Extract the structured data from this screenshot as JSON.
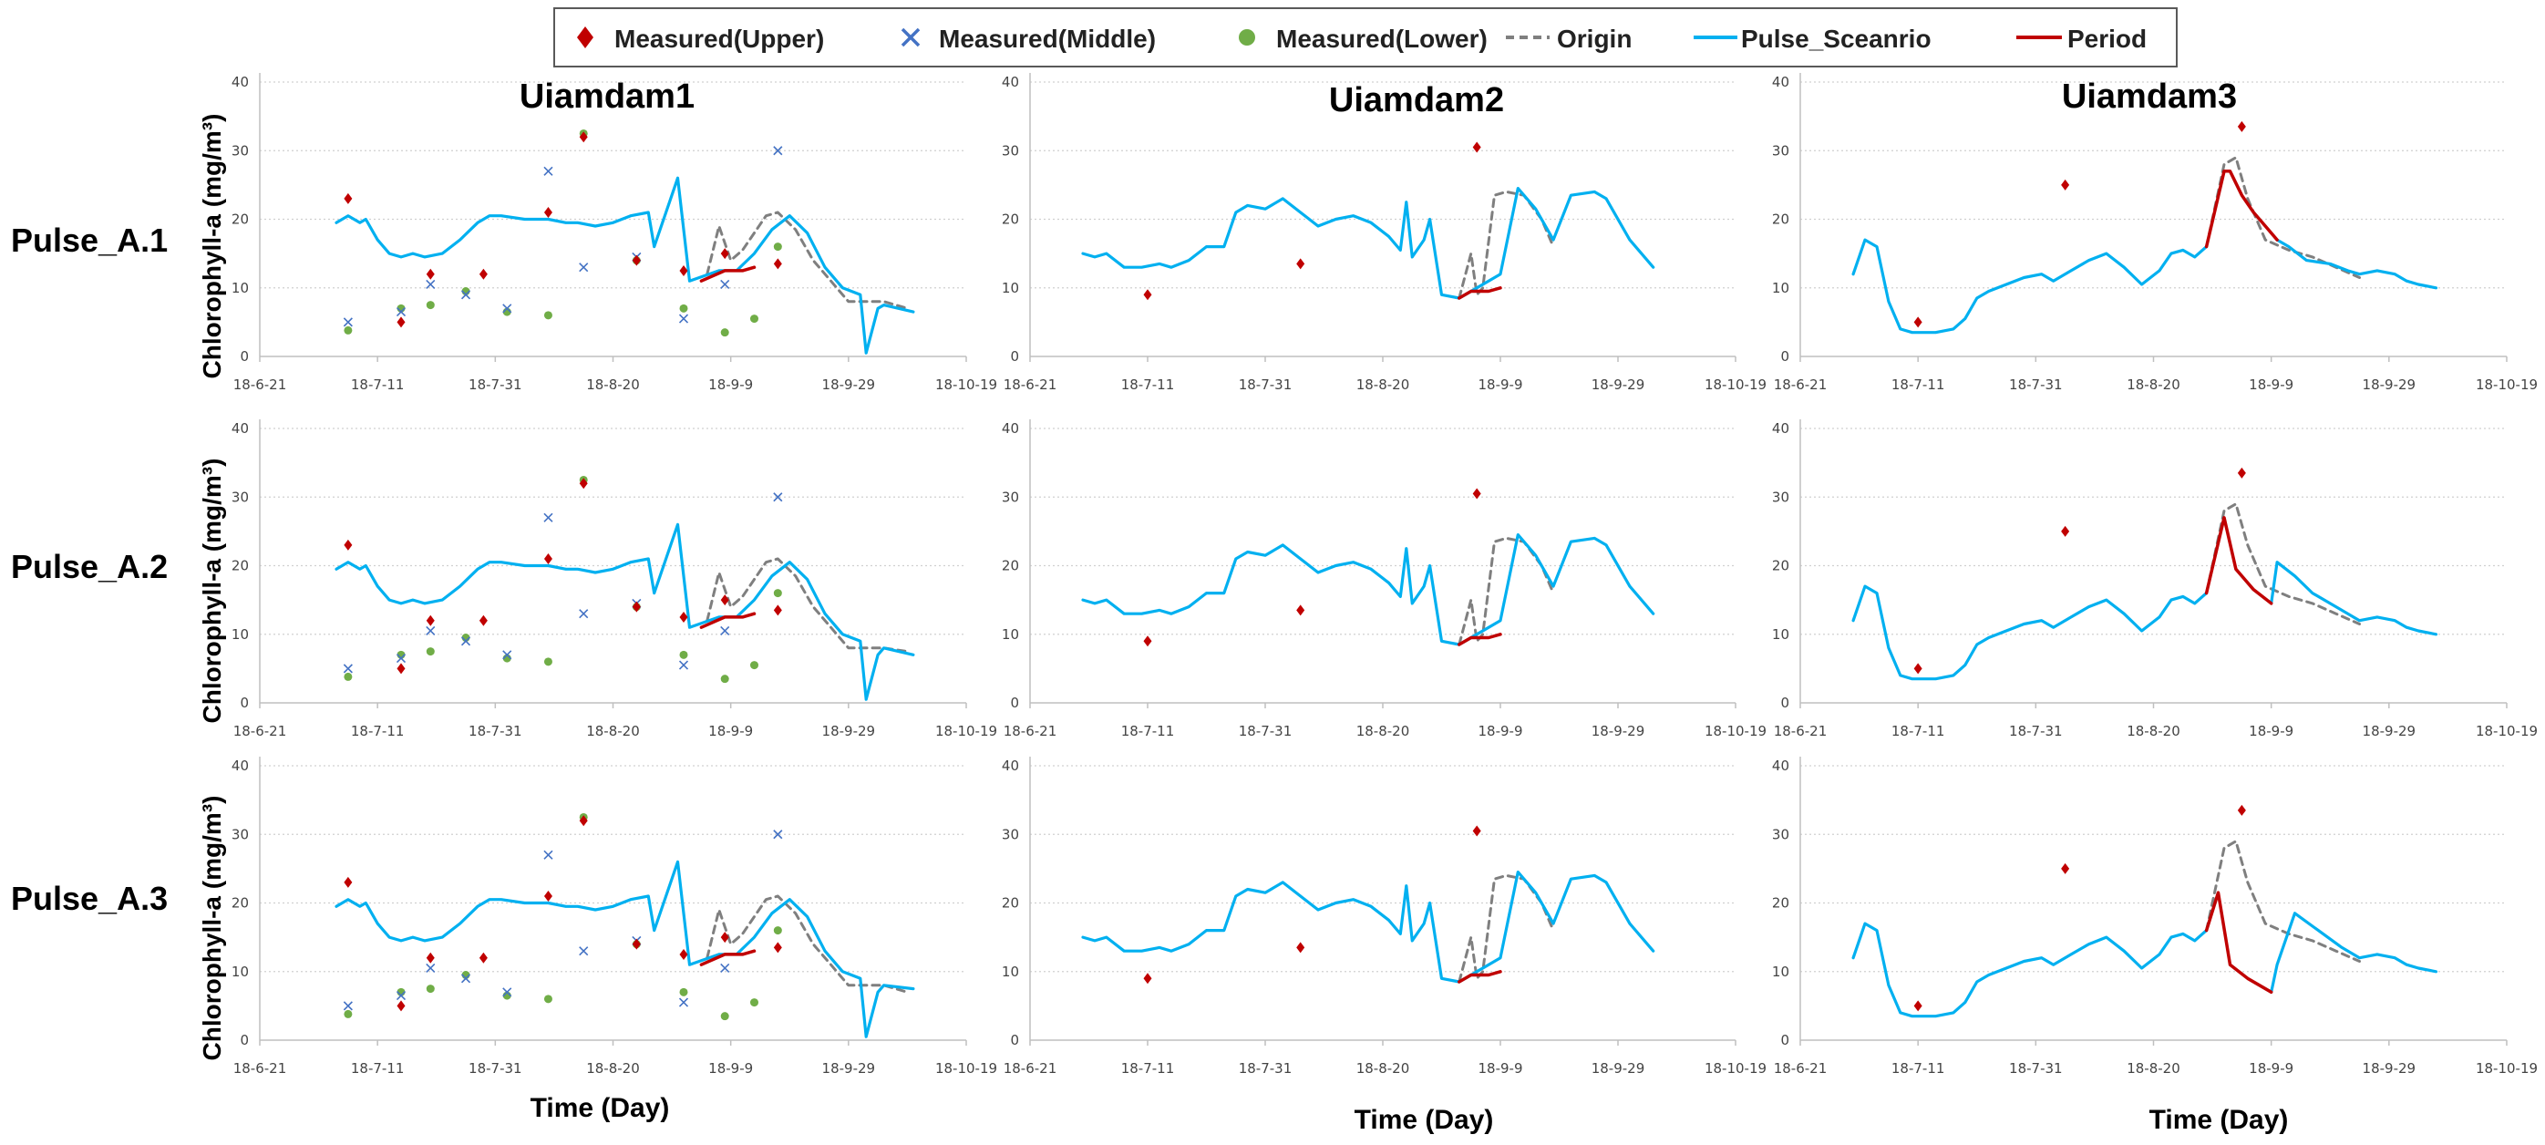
{
  "figure": {
    "column_titles": [
      "Uiamdam1",
      "Uiamdam2",
      "Uiamdam3"
    ],
    "row_labels": [
      "Pulse_A.1",
      "Pulse_A.2",
      "Pulse_A.3"
    ],
    "y_axis_label": "Chlorophyll-a (mg/m³)",
    "x_axis_label": "Time (Day)"
  },
  "legend": [
    {
      "label": "Measured(Upper)",
      "marker": "diamond",
      "color": "#C00000"
    },
    {
      "label": "Measured(Middle)",
      "marker": "x",
      "color": "#4472C4"
    },
    {
      "label": "Measured(Lower)",
      "marker": "circle",
      "color": "#70AD47"
    },
    {
      "label": "Origin",
      "marker": "dashed-line",
      "color": "#7F7F7F"
    },
    {
      "label": "Pulse_Sceanrio",
      "marker": "line",
      "color": "#00B0F0"
    },
    {
      "label": "Period",
      "marker": "line",
      "color": "#C00000"
    }
  ],
  "colors": {
    "upper": "#C00000",
    "middle": "#4472C4",
    "lower": "#70AD47",
    "origin": "#7F7F7F",
    "scenario": "#00B0F0",
    "period": "#C00000"
  },
  "chart_data": {
    "type": "line",
    "x_axis": {
      "kind": "date",
      "tick_labels": [
        "18-6-21",
        "18-7-11",
        "18-7-31",
        "18-8-20",
        "18-9-9",
        "18-9-29",
        "18-10-19"
      ],
      "range": [
        "2018-06-21",
        "2018-10-19"
      ]
    },
    "y_axis": {
      "range": [
        0,
        40
      ],
      "tick_labels": [
        "0",
        "10",
        "20",
        "30",
        "40"
      ],
      "grid": "dotted horizontal"
    },
    "legend_position": "top",
    "sites": {
      "Uiamdam1": {
        "measured_upper": [
          [
            "2018-07-06",
            23
          ],
          [
            "2018-07-15",
            5
          ],
          [
            "2018-07-20",
            12
          ],
          [
            "2018-07-29",
            12
          ],
          [
            "2018-08-09",
            21
          ],
          [
            "2018-08-15",
            32
          ],
          [
            "2018-08-24",
            14
          ],
          [
            "2018-09-01",
            12.5
          ],
          [
            "2018-09-08",
            15
          ],
          [
            "2018-09-17",
            13.5
          ]
        ],
        "measured_middle": [
          [
            "2018-07-06",
            5
          ],
          [
            "2018-07-15",
            6.5
          ],
          [
            "2018-07-20",
            10.5
          ],
          [
            "2018-07-26",
            9
          ],
          [
            "2018-08-02",
            7
          ],
          [
            "2018-08-09",
            27
          ],
          [
            "2018-08-15",
            13
          ],
          [
            "2018-08-24",
            14.5
          ],
          [
            "2018-09-01",
            5.5
          ],
          [
            "2018-09-08",
            10.5
          ],
          [
            "2018-09-17",
            30
          ]
        ],
        "measured_lower": [
          [
            "2018-07-06",
            3.8
          ],
          [
            "2018-07-15",
            7
          ],
          [
            "2018-07-20",
            7.5
          ],
          [
            "2018-07-26",
            9.5
          ],
          [
            "2018-08-02",
            6.5
          ],
          [
            "2018-08-09",
            6
          ],
          [
            "2018-08-15",
            32.5
          ],
          [
            "2018-08-24",
            14
          ],
          [
            "2018-09-01",
            7
          ],
          [
            "2018-09-08",
            3.5
          ],
          [
            "2018-09-13",
            5.5
          ],
          [
            "2018-09-17",
            16
          ]
        ],
        "scenario": [
          [
            "2018-07-04",
            19.5
          ],
          [
            "2018-07-06",
            20.5
          ],
          [
            "2018-07-08",
            19.5
          ],
          [
            "2018-07-09",
            20
          ],
          [
            "2018-07-11",
            17
          ],
          [
            "2018-07-13",
            15
          ],
          [
            "2018-07-15",
            14.5
          ],
          [
            "2018-07-17",
            15
          ],
          [
            "2018-07-19",
            14.5
          ],
          [
            "2018-07-22",
            15
          ],
          [
            "2018-07-25",
            17
          ],
          [
            "2018-07-28",
            19.5
          ],
          [
            "2018-07-30",
            20.5
          ],
          [
            "2018-08-01",
            20.5
          ],
          [
            "2018-08-05",
            20
          ],
          [
            "2018-08-09",
            20
          ],
          [
            "2018-08-12",
            19.5
          ],
          [
            "2018-08-14",
            19.5
          ],
          [
            "2018-08-17",
            19
          ],
          [
            "2018-08-20",
            19.5
          ],
          [
            "2018-08-23",
            20.5
          ],
          [
            "2018-08-26",
            21
          ],
          [
            "2018-08-27",
            16
          ],
          [
            "2018-08-29",
            21
          ],
          [
            "2018-08-31",
            26
          ],
          [
            "2018-09-02",
            11
          ],
          [
            "2018-09-07",
            12.5
          ],
          [
            "2018-09-10",
            12.5
          ],
          [
            "2018-09-13",
            15
          ],
          [
            "2018-09-16",
            18.5
          ],
          [
            "2018-09-19",
            20.5
          ],
          [
            "2018-09-22",
            18
          ],
          [
            "2018-09-25",
            13
          ],
          [
            "2018-09-28",
            10
          ],
          [
            "2018-10-01",
            9
          ],
          [
            "2018-10-02",
            0.5
          ],
          [
            "2018-10-04",
            7
          ],
          [
            "2018-10-07",
            7.5
          ],
          [
            "2018-10-10",
            6.5
          ]
        ],
        "period": [],
        "origin": [
          [
            "2018-09-05",
            12
          ],
          [
            "2018-09-07",
            19
          ],
          [
            "2018-09-09",
            14
          ],
          [
            "2018-09-11",
            15.5
          ],
          [
            "2018-09-15",
            20.5
          ],
          [
            "2018-09-17",
            21
          ],
          [
            "2018-09-20",
            18.5
          ],
          [
            "2018-09-23",
            14
          ],
          [
            "2018-09-26",
            11
          ],
          [
            "2018-09-29",
            8
          ],
          [
            "2018-10-02",
            8
          ],
          [
            "2018-10-05",
            8
          ],
          [
            "2018-10-09",
            7
          ]
        ],
        "panel_variants": {
          "Pulse_A.1": {
            "scenario_tail": [
              [
                "2018-10-05",
                7.5
              ],
              [
                "2018-10-10",
                6.5
              ]
            ],
            "period": [
              [
                "2018-09-04",
                11
              ],
              [
                "2018-09-08",
                12.5
              ],
              [
                "2018-09-11",
                12.5
              ],
              [
                "2018-09-13",
                13
              ]
            ],
            "origin_tail": [
              [
                "2018-10-09",
                7
              ]
            ]
          },
          "Pulse_A.2": {
            "scenario_tail": [
              [
                "2018-10-05",
                8
              ],
              [
                "2018-10-10",
                7
              ]
            ],
            "period": [
              [
                "2018-09-04",
                11
              ],
              [
                "2018-09-08",
                12.5
              ],
              [
                "2018-09-11",
                12.5
              ],
              [
                "2018-09-13",
                13
              ]
            ],
            "origin_tail": [
              [
                "2018-10-09",
                7.5
              ]
            ]
          },
          "Pulse_A.3": {
            "scenario_tail": [
              [
                "2018-10-05",
                8
              ],
              [
                "2018-10-10",
                7.5
              ]
            ],
            "period": [
              [
                "2018-09-04",
                11
              ],
              [
                "2018-09-08",
                12.5
              ],
              [
                "2018-09-11",
                12.5
              ],
              [
                "2018-09-13",
                13
              ]
            ],
            "origin_tail": [
              [
                "2018-10-09",
                7
              ]
            ]
          }
        }
      },
      "Uiamdam2": {
        "measured_upper": [
          [
            "2018-07-11",
            9
          ],
          [
            "2018-08-06",
            13.5
          ],
          [
            "2018-09-05",
            30.5
          ]
        ],
        "scenario": [
          [
            "2018-06-30",
            15
          ],
          [
            "2018-07-02",
            14.5
          ],
          [
            "2018-07-04",
            15
          ],
          [
            "2018-07-07",
            13
          ],
          [
            "2018-07-10",
            13
          ],
          [
            "2018-07-13",
            13.5
          ],
          [
            "2018-07-15",
            13
          ],
          [
            "2018-07-18",
            14
          ],
          [
            "2018-07-21",
            16
          ],
          [
            "2018-07-24",
            16
          ],
          [
            "2018-07-26",
            21
          ],
          [
            "2018-07-28",
            22
          ],
          [
            "2018-07-31",
            21.5
          ],
          [
            "2018-08-03",
            23
          ],
          [
            "2018-08-06",
            21
          ],
          [
            "2018-08-09",
            19
          ],
          [
            "2018-08-12",
            20
          ],
          [
            "2018-08-15",
            20.5
          ],
          [
            "2018-08-18",
            19.5
          ],
          [
            "2018-08-21",
            17.5
          ],
          [
            "2018-08-23",
            15.5
          ],
          [
            "2018-08-24",
            22.5
          ],
          [
            "2018-08-25",
            14.5
          ],
          [
            "2018-08-27",
            17
          ],
          [
            "2018-08-28",
            20
          ],
          [
            "2018-08-30",
            9
          ],
          [
            "2018-09-02",
            8.5
          ],
          [
            "2018-09-03",
            9
          ],
          [
            "2018-09-09",
            12
          ],
          [
            "2018-09-12",
            24.5
          ],
          [
            "2018-09-15",
            21.5
          ],
          [
            "2018-09-18",
            17
          ],
          [
            "2018-09-21",
            23.5
          ],
          [
            "2018-09-25",
            24
          ],
          [
            "2018-09-27",
            23
          ],
          [
            "2018-10-01",
            17
          ],
          [
            "2018-10-05",
            13
          ]
        ],
        "period": [
          [
            "2018-09-02",
            8.5
          ],
          [
            "2018-09-04",
            9.5
          ],
          [
            "2018-09-07",
            9.5
          ],
          [
            "2018-09-09",
            10
          ]
        ],
        "origin": [
          [
            "2018-09-02",
            8.5
          ],
          [
            "2018-09-04",
            15
          ],
          [
            "2018-09-05",
            9
          ],
          [
            "2018-09-06",
            10
          ],
          [
            "2018-09-08",
            23.5
          ],
          [
            "2018-09-10",
            24
          ],
          [
            "2018-09-13",
            23.5
          ],
          [
            "2018-09-16",
            20
          ],
          [
            "2018-09-18",
            16
          ]
        ]
      },
      "Uiamdam3": {
        "measured_upper": [
          [
            "2018-07-11",
            5
          ],
          [
            "2018-08-05",
            25
          ],
          [
            "2018-09-04",
            33.5
          ]
        ],
        "scenario": [
          [
            "2018-06-30",
            12
          ],
          [
            "2018-07-02",
            17
          ],
          [
            "2018-07-04",
            16
          ],
          [
            "2018-07-06",
            8
          ],
          [
            "2018-07-08",
            4
          ],
          [
            "2018-07-10",
            3.5
          ],
          [
            "2018-07-12",
            3.5
          ],
          [
            "2018-07-14",
            3.5
          ],
          [
            "2018-07-17",
            4
          ],
          [
            "2018-07-19",
            5.5
          ],
          [
            "2018-07-21",
            8.5
          ],
          [
            "2018-07-23",
            9.5
          ],
          [
            "2018-07-26",
            10.5
          ],
          [
            "2018-07-29",
            11.5
          ],
          [
            "2018-08-01",
            12
          ],
          [
            "2018-08-03",
            11
          ],
          [
            "2018-08-06",
            12.5
          ],
          [
            "2018-08-09",
            14
          ],
          [
            "2018-08-12",
            15
          ],
          [
            "2018-08-15",
            13
          ],
          [
            "2018-08-18",
            10.5
          ],
          [
            "2018-08-21",
            12.5
          ],
          [
            "2018-08-23",
            15
          ],
          [
            "2018-08-25",
            15.5
          ],
          [
            "2018-08-27",
            14.5
          ],
          [
            "2018-08-29",
            16
          ],
          [
            "2018-09-12",
            16
          ],
          [
            "2018-09-15",
            14
          ],
          [
            "2018-09-19",
            13.5
          ],
          [
            "2018-09-22",
            12.5
          ],
          [
            "2018-09-24",
            12
          ],
          [
            "2018-09-27",
            12.5
          ],
          [
            "2018-09-30",
            12
          ],
          [
            "2018-10-02",
            11
          ],
          [
            "2018-10-04",
            10.5
          ],
          [
            "2018-10-07",
            10
          ]
        ],
        "origin": [
          [
            "2018-08-29",
            16
          ],
          [
            "2018-09-01",
            28
          ],
          [
            "2018-09-03",
            29
          ],
          [
            "2018-09-05",
            23
          ],
          [
            "2018-09-08",
            17
          ],
          [
            "2018-09-12",
            15.5
          ],
          [
            "2018-09-16",
            14.5
          ],
          [
            "2018-09-20",
            13
          ],
          [
            "2018-09-24",
            11.5
          ]
        ],
        "panel_variants": {
          "Pulse_A.1": {
            "period": [
              [
                "2018-08-29",
                16
              ],
              [
                "2018-09-01",
                27
              ],
              [
                "2018-09-02",
                27
              ],
              [
                "2018-09-04",
                23.5
              ],
              [
                "2018-09-06",
                21
              ],
              [
                "2018-09-08",
                19
              ],
              [
                "2018-09-10",
                17
              ]
            ],
            "scenario_mid": [
              [
                "2018-09-10",
                17
              ],
              [
                "2018-09-12",
                16
              ]
            ]
          },
          "Pulse_A.2": {
            "period": [
              [
                "2018-08-29",
                16
              ],
              [
                "2018-09-01",
                27
              ],
              [
                "2018-09-03",
                19.5
              ],
              [
                "2018-09-06",
                16.5
              ],
              [
                "2018-09-09",
                14.5
              ]
            ],
            "scenario_mid": [
              [
                "2018-09-09",
                14.5
              ],
              [
                "2018-09-10",
                20.5
              ],
              [
                "2018-09-13",
                18.5
              ],
              [
                "2018-09-16",
                16
              ],
              [
                "2018-09-20",
                14
              ],
              [
                "2018-09-24",
                12
              ]
            ]
          },
          "Pulse_A.3": {
            "period": [
              [
                "2018-08-29",
                16
              ],
              [
                "2018-08-31",
                21.5
              ],
              [
                "2018-09-02",
                11
              ],
              [
                "2018-09-05",
                9
              ],
              [
                "2018-09-09",
                7
              ]
            ],
            "scenario_mid": [
              [
                "2018-09-09",
                7
              ],
              [
                "2018-09-10",
                11
              ],
              [
                "2018-09-13",
                18.5
              ],
              [
                "2018-09-17",
                16
              ],
              [
                "2018-09-21",
                13.5
              ],
              [
                "2018-09-24",
                12
              ]
            ]
          }
        }
      }
    }
  }
}
